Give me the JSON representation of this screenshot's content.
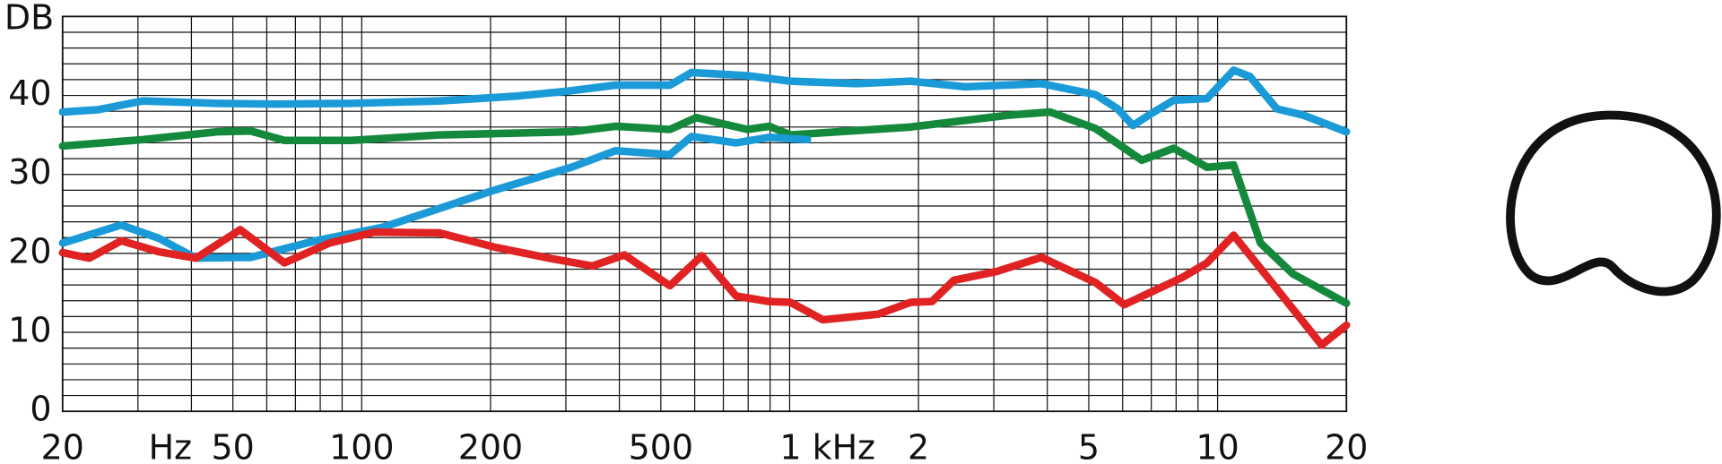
{
  "chart_data": {
    "type": "line",
    "y_label": "DB",
    "x_unit": "Hz",
    "xscale": "log",
    "xlim": [
      20,
      20000
    ],
    "ylim": [
      0,
      50
    ],
    "yticks": [
      0,
      10,
      20,
      30,
      40
    ],
    "yminor": [
      2,
      4,
      6,
      8,
      12,
      14,
      16,
      18,
      22,
      24,
      26,
      28,
      32,
      34,
      36,
      38,
      42,
      44,
      46,
      48,
      50
    ],
    "xticks": [
      20,
      50,
      100,
      200,
      500,
      {
        "value": 1000,
        "label": "1 kHz"
      },
      {
        "value": 2000,
        "label": "2"
      },
      {
        "value": 5000,
        "label": "5"
      },
      {
        "value": 10000,
        "label": "10"
      },
      {
        "value": 20000,
        "label": "20"
      }
    ],
    "xminor": [
      30,
      40,
      60,
      70,
      80,
      90,
      300,
      400,
      600,
      700,
      800,
      900,
      3000,
      4000,
      6000,
      7000,
      8000,
      9000
    ],
    "grid": true,
    "series": [
      {
        "color": "#1b9ad8",
        "x": [
          20,
          24.2,
          30.8,
          46,
          62.5,
          94.6,
          152,
          229,
          309,
          392,
          525,
          590,
          797,
          1004,
          1436,
          1918,
          2567,
          3875,
          5190,
          5840,
          6340,
          6950,
          7900,
          9450,
          10900,
          11900,
          13750,
          15870,
          20000
        ],
        "values": [
          37.9,
          38.2,
          39.3,
          39.0,
          38.9,
          39.0,
          39.3,
          39.9,
          40.6,
          41.3,
          41.3,
          42.9,
          42.5,
          41.8,
          41.5,
          41.8,
          41.1,
          41.5,
          40.1,
          38.3,
          36.2,
          37.6,
          39.4,
          39.6,
          43.2,
          42.4,
          38.3,
          37.5,
          35.4
        ]
      },
      {
        "color": "#14893b",
        "x": [
          20,
          30.8,
          46,
          55,
          66,
          94.6,
          152,
          309,
          392,
          525,
          605,
          797,
          896,
          1004,
          1918,
          3240,
          4060,
          5190,
          6650,
          7900,
          9450,
          10900,
          12600,
          15000,
          20000
        ],
        "values": [
          33.6,
          34.4,
          35.4,
          35.5,
          34.3,
          34.3,
          35.0,
          35.4,
          36.1,
          35.7,
          37.2,
          35.7,
          36.1,
          35.0,
          36.0,
          37.5,
          37.9,
          35.8,
          31.8,
          33.3,
          30.9,
          31.2,
          21.3,
          17.4,
          13.7
        ]
      },
      {
        "color": "#1b9ad8",
        "x": [
          20,
          27.4,
          33.6,
          41,
          55,
          78,
          112,
          204,
          309,
          392,
          525,
          590,
          750,
          896,
          1100
        ],
        "values": [
          21.3,
          23.6,
          21.9,
          19.4,
          19.5,
          21.6,
          23.3,
          28.0,
          30.9,
          33.0,
          32.5,
          34.8,
          34.0,
          34.7,
          34.4
        ]
      },
      {
        "color": "#e02222",
        "x": [
          20,
          23.1,
          27.4,
          33.6,
          41,
          52,
          66,
          84,
          107,
          152,
          204,
          274,
          346,
          411,
          525,
          623,
          750,
          896,
          1004,
          1195,
          1610,
          1918,
          2150,
          2420,
          3040,
          3875,
          5190,
          6050,
          8300,
          9450,
          10900,
          12600,
          17500,
          20000
        ],
        "values": [
          20.1,
          19.4,
          21.6,
          20.2,
          19.4,
          23.0,
          18.8,
          21.3,
          22.7,
          22.6,
          20.8,
          19.4,
          18.4,
          19.8,
          15.9,
          19.7,
          14.6,
          13.9,
          13.8,
          11.6,
          12.3,
          13.8,
          13.9,
          16.6,
          17.7,
          19.5,
          16.3,
          13.5,
          17.0,
          18.8,
          22.3,
          18.1,
          8.4,
          10.9
        ]
      }
    ]
  }
}
